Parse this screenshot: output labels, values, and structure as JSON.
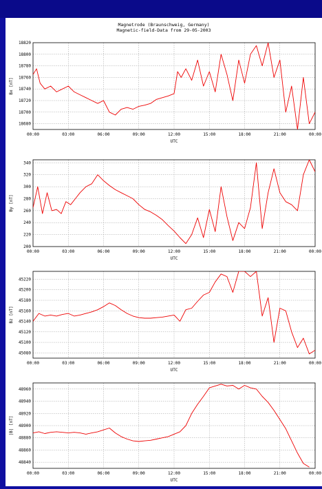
{
  "title": {
    "line1": "Magnetrode (Braunschweig, Germany)",
    "line2": "Magnetic-field-Data from 29-05-2003"
  },
  "colors": {
    "background": "#0f0fa0",
    "panel": "#ffffff",
    "series": "#ee0000"
  },
  "chart_data": [
    {
      "type": "line",
      "ylabel": "Bx [nT]",
      "xlabel": "UTC",
      "ylim": [
        18670,
        18820
      ],
      "yticks": [
        "18820",
        "18800",
        "18780",
        "18760",
        "18740",
        "18720",
        "18700",
        "18680"
      ],
      "xticks": [
        "00:00",
        "03:00",
        "06:00",
        "09:00",
        "12:00",
        "15:00",
        "18:00",
        "21:00",
        "00:00"
      ],
      "grid": true,
      "x": [
        0,
        0.3,
        0.6,
        1,
        1.5,
        2,
        2.5,
        3,
        3.5,
        4,
        4.5,
        5,
        5.5,
        6,
        6.5,
        7,
        7.5,
        8,
        8.5,
        9,
        9.5,
        10,
        10.5,
        11,
        11.5,
        12,
        12.3,
        12.6,
        13,
        13.5,
        14,
        14.5,
        15,
        15.5,
        16,
        16.5,
        17,
        17.5,
        18,
        18.5,
        19,
        19.5,
        20,
        20.5,
        21,
        21.5,
        22,
        22.5,
        23,
        23.5,
        24
      ],
      "y": [
        18765,
        18775,
        18750,
        18740,
        18745,
        18735,
        18740,
        18745,
        18735,
        18730,
        18725,
        18720,
        18715,
        18720,
        18700,
        18695,
        18705,
        18708,
        18705,
        18710,
        18712,
        18715,
        18722,
        18725,
        18728,
        18732,
        18770,
        18760,
        18775,
        18755,
        18790,
        18745,
        18770,
        18735,
        18800,
        18765,
        18720,
        18790,
        18750,
        18800,
        18815,
        18780,
        18820,
        18760,
        18790,
        18700,
        18745,
        18670,
        18760,
        18680,
        18700
      ]
    },
    {
      "type": "line",
      "ylabel": "By [nT]",
      "xlabel": "UTC",
      "ylim": [
        200,
        345
      ],
      "yticks": [
        "340",
        "320",
        "300",
        "280",
        "260",
        "240",
        "220",
        "200"
      ],
      "xticks": [
        "00:00",
        "03:00",
        "06:00",
        "09:00",
        "12:00",
        "15:00",
        "18:00",
        "21:00",
        "00:00"
      ],
      "grid": true,
      "x": [
        0,
        0.4,
        0.8,
        1.2,
        1.6,
        2,
        2.4,
        2.8,
        3.2,
        3.6,
        4,
        4.5,
        5,
        5.5,
        6,
        6.5,
        7,
        7.5,
        8,
        8.5,
        9,
        9.5,
        10,
        10.5,
        11,
        11.5,
        12,
        12.5,
        13,
        13.5,
        14,
        14.5,
        15,
        15.5,
        16,
        16.5,
        17,
        17.5,
        18,
        18.5,
        19,
        19.5,
        20,
        20.5,
        21,
        21.5,
        22,
        22.5,
        23,
        23.5,
        24
      ],
      "y": [
        265,
        300,
        255,
        290,
        260,
        262,
        255,
        275,
        270,
        280,
        290,
        300,
        305,
        320,
        310,
        302,
        295,
        290,
        285,
        280,
        270,
        262,
        258,
        252,
        245,
        235,
        226,
        215,
        205,
        220,
        248,
        215,
        262,
        225,
        300,
        250,
        210,
        240,
        230,
        265,
        340,
        230,
        290,
        330,
        290,
        275,
        270,
        260,
        320,
        345,
        325
      ]
    },
    {
      "type": "line",
      "ylabel": "Bz [nT]",
      "xlabel": "UTC",
      "ylim": [
        45070,
        45235
      ],
      "yticks": [
        "45220",
        "45200",
        "45180",
        "45160",
        "45140",
        "45120",
        "45100",
        "45080"
      ],
      "xticks": [
        "00:00",
        "03:00",
        "06:00",
        "09:00",
        "12:00",
        "15:00",
        "18:00",
        "21:00",
        "00:00"
      ],
      "grid": true,
      "x": [
        0,
        0.5,
        1,
        1.5,
        2,
        2.5,
        3,
        3.5,
        4,
        4.5,
        5,
        5.5,
        6,
        6.5,
        7,
        7.5,
        8,
        8.5,
        9,
        9.5,
        10,
        10.5,
        11,
        11.5,
        12,
        12.5,
        13,
        13.5,
        14,
        14.5,
        15,
        15.5,
        16,
        16.5,
        17,
        17.5,
        18,
        18.5,
        19,
        19.5,
        20,
        20.5,
        21,
        21.5,
        22,
        22.5,
        23,
        23.5,
        24
      ],
      "y": [
        45140,
        45155,
        45150,
        45152,
        45150,
        45153,
        45155,
        45150,
        45152,
        45155,
        45158,
        45162,
        45168,
        45175,
        45170,
        45162,
        45155,
        45150,
        45147,
        45146,
        45146,
        45147,
        45148,
        45150,
        45152,
        45140,
        45162,
        45165,
        45178,
        45190,
        45195,
        45215,
        45230,
        45225,
        45195,
        45235,
        45235,
        45225,
        45235,
        45150,
        45185,
        45100,
        45165,
        45160,
        45120,
        45090,
        45108,
        45078,
        45085
      ]
    },
    {
      "type": "line",
      "ylabel": "|B| [nT]",
      "xlabel": "UTC",
      "ylim": [
        48830,
        48970
      ],
      "yticks": [
        "48960",
        "48940",
        "48920",
        "48900",
        "48880",
        "48860",
        "48840"
      ],
      "xticks": [
        "00:00",
        "03:00",
        "06:00",
        "09:00",
        "12:00",
        "15:00",
        "18:00",
        "21:00",
        "00:00"
      ],
      "grid": true,
      "x": [
        0,
        0.5,
        1,
        1.5,
        2,
        2.5,
        3,
        3.5,
        4,
        4.5,
        5,
        5.5,
        6,
        6.5,
        7,
        7.5,
        8,
        8.5,
        9,
        9.5,
        10,
        10.5,
        11,
        11.5,
        12,
        12.5,
        13,
        13.5,
        14,
        14.5,
        15,
        16,
        16.5,
        17,
        17.5,
        18,
        18.5,
        19,
        19.5,
        20,
        20.5,
        21,
        21.5,
        22,
        22.5,
        23,
        23.5
      ],
      "y": [
        48888,
        48890,
        48887,
        48889,
        48890,
        48889,
        48888,
        48889,
        48888,
        48886,
        48888,
        48890,
        48893,
        48896,
        48888,
        48882,
        48878,
        48875,
        48874,
        48875,
        48876,
        48878,
        48880,
        48882,
        48886,
        48890,
        48900,
        48920,
        48935,
        48948,
        48962,
        48968,
        48965,
        48966,
        48960,
        48966,
        48962,
        48960,
        48948,
        48938,
        48925,
        48910,
        48895,
        48875,
        48855,
        48838,
        48832
      ]
    }
  ]
}
